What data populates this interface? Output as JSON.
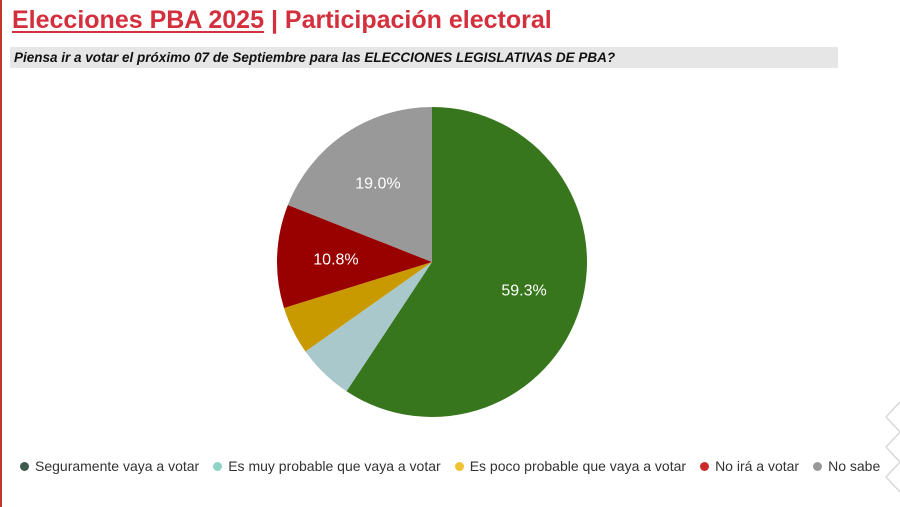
{
  "header": {
    "title_part1": "Elecciones PBA 2025",
    "title_separator": "|",
    "title_part2": "Participación electoral",
    "question": "Piensa ir a votar el próximo 07 de Septiembre para las ELECCIONES LEGISLATIVAS DE PBA?"
  },
  "chart_data": {
    "type": "pie",
    "start_angle_deg": 0,
    "direction": "clockwise",
    "slices": [
      {
        "name": "Seguramente vaya a votar",
        "value": 59.3,
        "label": "59.3%",
        "color": "#38761d"
      },
      {
        "name": "Es muy probable que vaya a votar",
        "value": 5.9,
        "label": "",
        "color": "#a8c8cc"
      },
      {
        "name": "Es poco probable que vaya a votar",
        "value": 5.0,
        "label": "",
        "color": "#c99a00"
      },
      {
        "name": "No irá a votar",
        "value": 10.8,
        "label": "10.8%",
        "color": "#990000"
      },
      {
        "name": "No sabe",
        "value": 19.0,
        "label": "19.0%",
        "color": "#999999"
      }
    ],
    "legend_position": "bottom",
    "legend_dot_colors": [
      "#3d5a4a",
      "#8fd3c7",
      "#f1c232",
      "#cc2a2a",
      "#999999"
    ]
  }
}
